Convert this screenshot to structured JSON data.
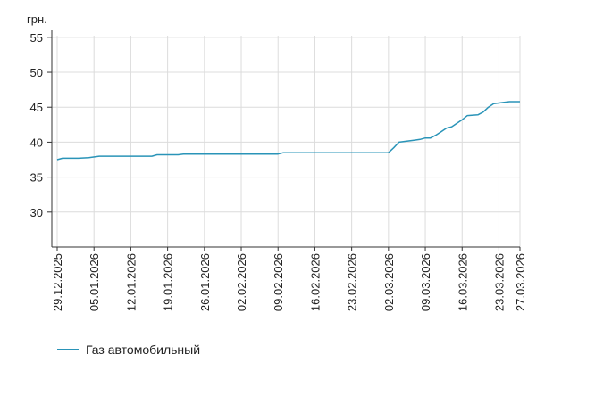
{
  "chart_data": {
    "type": "line",
    "ylabel": "грн.",
    "ylim": [
      25,
      56
    ],
    "yticks": [
      30,
      35,
      40,
      45,
      50,
      55
    ],
    "x_range": [
      "29.12.2025",
      "27.03.2026"
    ],
    "xticks": [
      "29.12.2025",
      "05.01.2026",
      "12.01.2026",
      "19.01.2026",
      "26.01.2026",
      "02.02.2026",
      "09.02.2026",
      "16.02.2026",
      "23.02.2026",
      "02.03.2026",
      "09.03.2026",
      "16.03.2026",
      "23.03.2026",
      "27.03.2026"
    ],
    "grid": true,
    "legend_position": "bottom-left",
    "series": [
      {
        "name": "Газ автомобильный",
        "color": "#2a94b8",
        "points": [
          [
            "29.12.2025",
            37.5
          ],
          [
            "30.12.2025",
            37.7
          ],
          [
            "02.01.2026",
            37.7
          ],
          [
            "04.01.2026",
            37.8
          ],
          [
            "06.01.2026",
            38.0
          ],
          [
            "09.01.2026",
            38.0
          ],
          [
            "16.01.2026",
            38.0
          ],
          [
            "17.01.2026",
            38.2
          ],
          [
            "21.01.2026",
            38.2
          ],
          [
            "22.01.2026",
            38.3
          ],
          [
            "09.02.2026",
            38.3
          ],
          [
            "10.02.2026",
            38.5
          ],
          [
            "02.03.2026",
            38.5
          ],
          [
            "03.03.2026",
            39.2
          ],
          [
            "04.03.2026",
            40.0
          ],
          [
            "05.03.2026",
            40.1
          ],
          [
            "07.03.2026",
            40.3
          ],
          [
            "08.03.2026",
            40.4
          ],
          [
            "09.03.2026",
            40.6
          ],
          [
            "10.03.2026",
            40.6
          ],
          [
            "11.03.2026",
            41.0
          ],
          [
            "12.03.2026",
            41.5
          ],
          [
            "13.03.2026",
            42.0
          ],
          [
            "14.03.2026",
            42.2
          ],
          [
            "15.03.2026",
            42.7
          ],
          [
            "16.03.2026",
            43.2
          ],
          [
            "17.03.2026",
            43.8
          ],
          [
            "19.03.2026",
            43.9
          ],
          [
            "20.03.2026",
            44.3
          ],
          [
            "21.03.2026",
            45.0
          ],
          [
            "22.03.2026",
            45.5
          ],
          [
            "24.03.2026",
            45.7
          ],
          [
            "25.03.2026",
            45.8
          ],
          [
            "27.03.2026",
            45.8
          ]
        ]
      }
    ]
  }
}
